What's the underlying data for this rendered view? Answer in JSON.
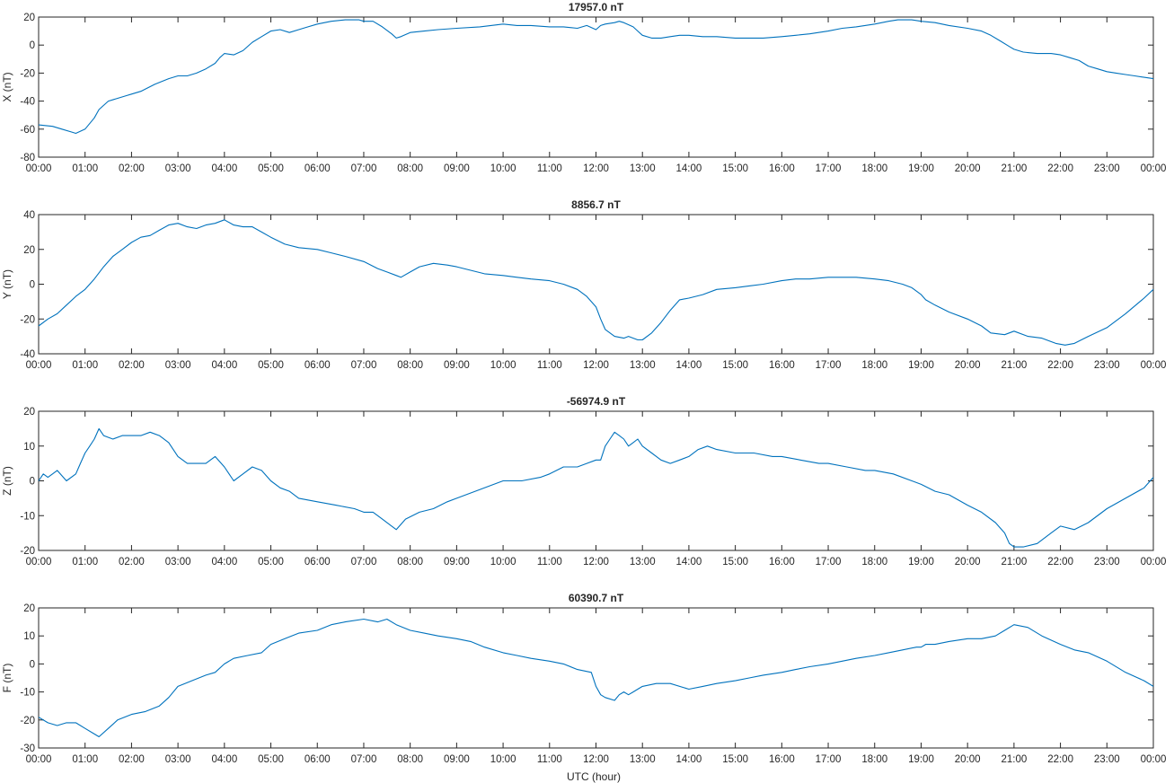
{
  "figure": {
    "xlabel": "UTC (hour)",
    "line_color": "#0072BD"
  },
  "chart_data": [
    {
      "type": "line",
      "title": "17957.0 nT",
      "ylabel": "X (nT)",
      "xlim": [
        0,
        24
      ],
      "ylim": [
        -80,
        20
      ],
      "yticks": [
        -80,
        -60,
        -40,
        -20,
        0,
        20
      ],
      "xtick_labels": [
        "00:00",
        "01:00",
        "02:00",
        "03:00",
        "04:00",
        "05:00",
        "06:00",
        "07:00",
        "08:00",
        "09:00",
        "10:00",
        "11:00",
        "12:00",
        "13:00",
        "14:00",
        "15:00",
        "16:00",
        "17:00",
        "18:00",
        "19:00",
        "20:00",
        "21:00",
        "22:00",
        "23:00",
        "00:00"
      ],
      "series": [
        {
          "x": [
            0,
            0.3,
            0.5,
            0.7,
            0.8,
            1.0,
            1.2,
            1.3,
            1.5,
            1.7,
            1.9,
            2.0,
            2.2,
            2.5,
            2.8,
            3.0,
            3.2,
            3.4,
            3.6,
            3.8,
            3.9,
            4.0,
            4.2,
            4.4,
            4.6,
            4.8,
            5.0,
            5.2,
            5.4,
            5.6,
            5.8,
            6.0,
            6.3,
            6.6,
            6.9,
            7.0,
            7.2,
            7.4,
            7.6,
            7.7,
            7.8,
            8.0,
            8.3,
            8.6,
            9.0,
            9.5,
            10.0,
            10.3,
            10.6,
            11.0,
            11.3,
            11.6,
            11.8,
            12.0,
            12.1,
            12.2,
            12.4,
            12.5,
            12.6,
            12.8,
            12.9,
            13.0,
            13.2,
            13.4,
            13.6,
            13.8,
            14.0,
            14.3,
            14.6,
            15.0,
            15.3,
            15.6,
            16.0,
            16.3,
            16.6,
            17.0,
            17.3,
            17.6,
            18.0,
            18.3,
            18.5,
            18.8,
            19.0,
            19.3,
            19.6,
            20.0,
            20.3,
            20.5,
            20.7,
            20.9,
            21.0,
            21.2,
            21.5,
            21.8,
            22.0,
            22.2,
            22.4,
            22.6,
            22.8,
            23.0,
            23.2,
            23.4,
            23.6,
            23.8,
            24.0
          ],
          "y": [
            -57,
            -58,
            -60,
            -62,
            -63,
            -60,
            -52,
            -46,
            -40,
            -38,
            -36,
            -35,
            -33,
            -28,
            -24,
            -22,
            -22,
            -20,
            -17,
            -13,
            -9,
            -6,
            -7,
            -4,
            2,
            6,
            10,
            11,
            9,
            11,
            13,
            15,
            17,
            18,
            18,
            17,
            17,
            13,
            8,
            5,
            6,
            9,
            10,
            11,
            12,
            13,
            15,
            14,
            14,
            13,
            13,
            12,
            14,
            11,
            14,
            15,
            16,
            17,
            16,
            13,
            10,
            7,
            5,
            5,
            6,
            7,
            7,
            6,
            6,
            5,
            5,
            5,
            6,
            7,
            8,
            10,
            12,
            13,
            15,
            17,
            18,
            18,
            17,
            16,
            14,
            12,
            10,
            7,
            3,
            -1,
            -3,
            -5,
            -6,
            -6,
            -7,
            -9,
            -11,
            -15,
            -17,
            -19,
            -20,
            -21,
            -22,
            -23,
            -24
          ]
        }
      ]
    },
    {
      "type": "line",
      "title": "8856.7 nT",
      "ylabel": "Y (nT)",
      "xlim": [
        0,
        24
      ],
      "ylim": [
        -40,
        40
      ],
      "yticks": [
        -40,
        -20,
        0,
        20,
        40
      ],
      "xtick_labels": [
        "00:00",
        "01:00",
        "02:00",
        "03:00",
        "04:00",
        "05:00",
        "06:00",
        "07:00",
        "08:00",
        "09:00",
        "10:00",
        "11:00",
        "12:00",
        "13:00",
        "14:00",
        "15:00",
        "16:00",
        "17:00",
        "18:00",
        "19:00",
        "20:00",
        "21:00",
        "22:00",
        "23:00",
        "00:00"
      ],
      "series": [
        {
          "x": [
            0,
            0.2,
            0.4,
            0.6,
            0.8,
            0.9,
            1.0,
            1.2,
            1.4,
            1.6,
            1.8,
            2.0,
            2.2,
            2.4,
            2.6,
            2.8,
            3.0,
            3.2,
            3.4,
            3.6,
            3.8,
            4.0,
            4.2,
            4.4,
            4.6,
            4.8,
            5.0,
            5.3,
            5.6,
            6.0,
            6.3,
            6.6,
            7.0,
            7.3,
            7.5,
            7.7,
            7.8,
            8.0,
            8.2,
            8.5,
            8.8,
            9.0,
            9.3,
            9.6,
            10.0,
            10.3,
            10.6,
            11.0,
            11.3,
            11.6,
            11.8,
            12.0,
            12.1,
            12.2,
            12.4,
            12.6,
            12.7,
            12.9,
            13.0,
            13.2,
            13.4,
            13.6,
            13.8,
            14.0,
            14.3,
            14.6,
            15.0,
            15.3,
            15.6,
            16.0,
            16.3,
            16.6,
            17.0,
            17.3,
            17.6,
            18.0,
            18.3,
            18.6,
            18.8,
            19.0,
            19.1,
            19.3,
            19.6,
            20.0,
            20.3,
            20.5,
            20.8,
            21.0,
            21.3,
            21.6,
            21.9,
            22.1,
            22.3,
            22.6,
            23.0,
            23.4,
            23.8,
            24.0
          ],
          "y": [
            -24,
            -20,
            -17,
            -12,
            -7,
            -5,
            -3,
            3,
            10,
            16,
            20,
            24,
            27,
            28,
            31,
            34,
            35,
            33,
            32,
            34,
            35,
            37,
            34,
            33,
            33,
            30,
            27,
            23,
            21,
            20,
            18,
            16,
            13,
            9,
            7,
            5,
            4,
            7,
            10,
            12,
            11,
            10,
            8,
            6,
            5,
            4,
            3,
            2,
            0,
            -3,
            -7,
            -13,
            -20,
            -26,
            -30,
            -31,
            -30,
            -32,
            -32,
            -28,
            -22,
            -15,
            -9,
            -8,
            -6,
            -3,
            -2,
            -1,
            0,
            2,
            3,
            3,
            4,
            4,
            4,
            3,
            2,
            0,
            -2,
            -6,
            -9,
            -12,
            -16,
            -20,
            -24,
            -28,
            -29,
            -27,
            -30,
            -31,
            -34,
            -35,
            -34,
            -30,
            -25,
            -17,
            -8,
            -3
          ]
        }
      ]
    },
    {
      "type": "line",
      "title": "-56974.9 nT",
      "ylabel": "Z (nT)",
      "xlim": [
        0,
        24
      ],
      "ylim": [
        -20,
        20
      ],
      "yticks": [
        -20,
        -10,
        0,
        10,
        20
      ],
      "xtick_labels": [
        "00:00",
        "01:00",
        "02:00",
        "03:00",
        "04:00",
        "05:00",
        "06:00",
        "07:00",
        "08:00",
        "09:00",
        "10:00",
        "11:00",
        "12:00",
        "13:00",
        "14:00",
        "15:00",
        "16:00",
        "17:00",
        "18:00",
        "19:00",
        "20:00",
        "21:00",
        "22:00",
        "23:00",
        "00:00"
      ],
      "series": [
        {
          "x": [
            0,
            0.1,
            0.2,
            0.3,
            0.4,
            0.6,
            0.8,
            0.9,
            1.0,
            1.1,
            1.2,
            1.3,
            1.4,
            1.6,
            1.8,
            2.0,
            2.2,
            2.4,
            2.6,
            2.8,
            3.0,
            3.2,
            3.4,
            3.6,
            3.8,
            4.0,
            4.2,
            4.4,
            4.6,
            4.8,
            5.0,
            5.2,
            5.4,
            5.6,
            6.0,
            6.4,
            6.8,
            7.0,
            7.2,
            7.4,
            7.6,
            7.7,
            7.9,
            8.2,
            8.5,
            8.8,
            9.0,
            9.4,
            9.8,
            10.0,
            10.4,
            10.8,
            11.0,
            11.3,
            11.6,
            11.8,
            12.0,
            12.1,
            12.2,
            12.3,
            12.4,
            12.5,
            12.6,
            12.7,
            12.8,
            12.9,
            13.0,
            13.2,
            13.4,
            13.6,
            13.8,
            14.0,
            14.2,
            14.4,
            14.6,
            15.0,
            15.4,
            15.8,
            16.0,
            16.4,
            16.8,
            17.0,
            17.4,
            17.8,
            18.0,
            18.4,
            18.8,
            19.0,
            19.3,
            19.6,
            20.0,
            20.3,
            20.6,
            20.8,
            20.9,
            21.0,
            21.2,
            21.5,
            21.8,
            22.0,
            22.3,
            22.6,
            23.0,
            23.4,
            23.8,
            24.0
          ],
          "y": [
            0,
            2,
            1,
            2,
            3,
            0,
            2,
            5,
            8,
            10,
            12,
            15,
            13,
            12,
            13,
            13,
            13,
            14,
            13,
            11,
            7,
            5,
            5,
            5,
            7,
            4,
            0,
            2,
            4,
            3,
            0,
            -2,
            -3,
            -5,
            -6,
            -7,
            -8,
            -9,
            -9,
            -11,
            -13,
            -14,
            -11,
            -9,
            -8,
            -6,
            -5,
            -3,
            -1,
            0,
            0,
            1,
            2,
            4,
            4,
            5,
            6,
            6,
            10,
            12,
            14,
            13,
            12,
            10,
            11,
            12,
            10,
            8,
            6,
            5,
            6,
            7,
            9,
            10,
            9,
            8,
            8,
            7,
            7,
            6,
            5,
            5,
            4,
            3,
            3,
            2,
            0,
            -1,
            -3,
            -4,
            -7,
            -9,
            -12,
            -15,
            -18,
            -19,
            -19,
            -18,
            -15,
            -13,
            -14,
            -12,
            -8,
            -5,
            -2,
            1
          ]
        }
      ]
    },
    {
      "type": "line",
      "title": "60390.7 nT",
      "ylabel": "F (nT)",
      "xlim": [
        0,
        24
      ],
      "ylim": [
        -30,
        20
      ],
      "yticks": [
        -30,
        -20,
        -10,
        0,
        10,
        20
      ],
      "xtick_labels": [
        "00:00",
        "01:00",
        "02:00",
        "03:00",
        "04:00",
        "05:00",
        "06:00",
        "07:00",
        "08:00",
        "09:00",
        "10:00",
        "11:00",
        "12:00",
        "13:00",
        "14:00",
        "15:00",
        "16:00",
        "17:00",
        "18:00",
        "19:00",
        "20:00",
        "21:00",
        "22:00",
        "23:00",
        "00:00"
      ],
      "series": [
        {
          "x": [
            0,
            0.2,
            0.4,
            0.6,
            0.8,
            1.0,
            1.2,
            1.3,
            1.5,
            1.7,
            2.0,
            2.3,
            2.6,
            2.8,
            3.0,
            3.3,
            3.6,
            3.8,
            4.0,
            4.2,
            4.5,
            4.8,
            5.0,
            5.3,
            5.6,
            6.0,
            6.3,
            6.6,
            7.0,
            7.3,
            7.5,
            7.7,
            8.0,
            8.3,
            8.6,
            9.0,
            9.3,
            9.6,
            10.0,
            10.3,
            10.6,
            11.0,
            11.3,
            11.6,
            11.9,
            12.0,
            12.1,
            12.2,
            12.4,
            12.5,
            12.6,
            12.7,
            12.8,
            12.9,
            13.0,
            13.3,
            13.6,
            14.0,
            14.3,
            14.6,
            15.0,
            15.3,
            15.6,
            16.0,
            16.3,
            16.6,
            17.0,
            17.3,
            17.6,
            18.0,
            18.3,
            18.6,
            18.9,
            19.0,
            19.1,
            19.3,
            19.6,
            20.0,
            20.3,
            20.6,
            20.8,
            21.0,
            21.3,
            21.6,
            22.0,
            22.3,
            22.6,
            23.0,
            23.4,
            23.8,
            24.0
          ],
          "y": [
            -19,
            -21,
            -22,
            -21,
            -21,
            -23,
            -25,
            -26,
            -23,
            -20,
            -18,
            -17,
            -15,
            -12,
            -8,
            -6,
            -4,
            -3,
            0,
            2,
            3,
            4,
            7,
            9,
            11,
            12,
            14,
            15,
            16,
            15,
            16,
            14,
            12,
            11,
            10,
            9,
            8,
            6,
            4,
            3,
            2,
            1,
            0,
            -2,
            -3,
            -8,
            -11,
            -12,
            -13,
            -11,
            -10,
            -11,
            -10,
            -9,
            -8,
            -7,
            -7,
            -9,
            -8,
            -7,
            -6,
            -5,
            -4,
            -3,
            -2,
            -1,
            0,
            1,
            2,
            3,
            4,
            5,
            6,
            6,
            7,
            7,
            8,
            9,
            9,
            10,
            12,
            14,
            13,
            10,
            7,
            5,
            4,
            1,
            -3,
            -6,
            -8
          ]
        }
      ]
    }
  ]
}
